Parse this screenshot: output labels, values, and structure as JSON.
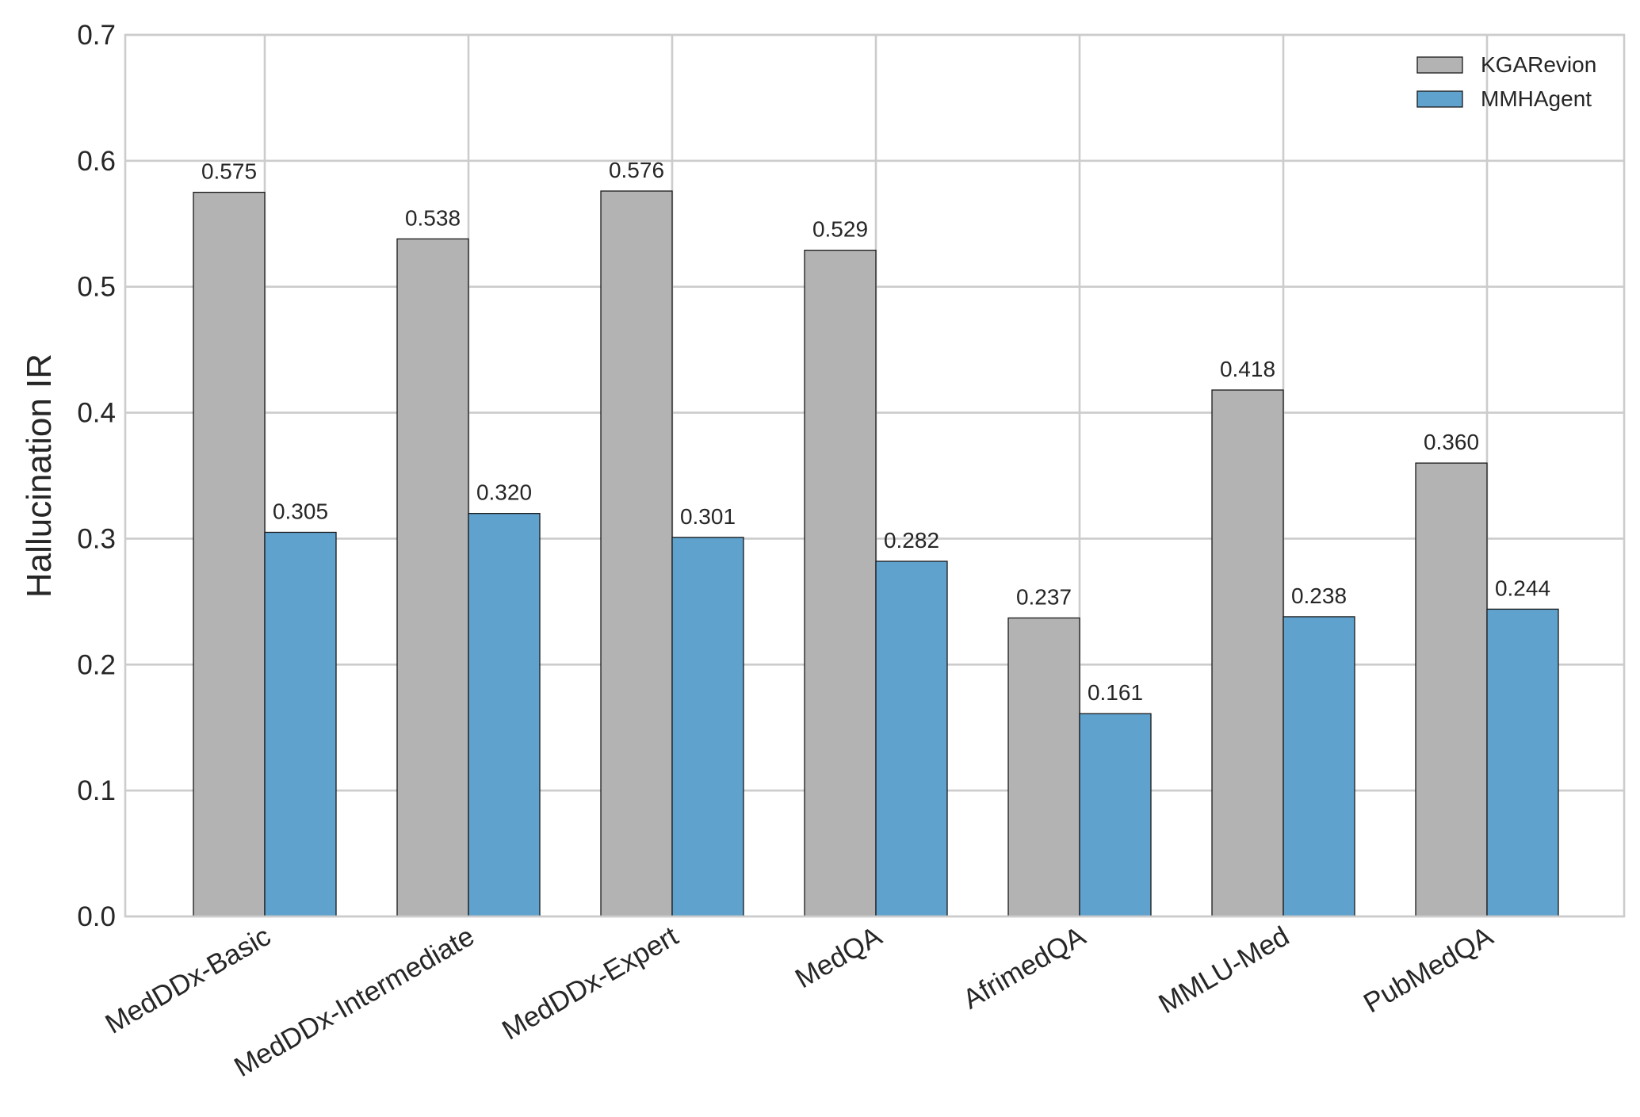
{
  "chart_data": {
    "type": "bar",
    "title": "",
    "xlabel": "",
    "ylabel": "Hallucination IR",
    "categories": [
      "MedDDx-Basic",
      "MedDDx-Intermediate",
      "MedDDx-Expert",
      "MedQA",
      "AfrimedQA",
      "MMLU-Med",
      "PubMedQA"
    ],
    "series": [
      {
        "name": "KGARevion",
        "color": "#b3b3b3",
        "values": [
          0.575,
          0.538,
          0.576,
          0.529,
          0.237,
          0.418,
          0.36
        ],
        "labels": [
          "0.575",
          "0.538",
          "0.576",
          "0.529",
          "0.237",
          "0.418",
          "0.360"
        ]
      },
      {
        "name": "MMHAgent",
        "color": "#5fa2cd",
        "values": [
          0.305,
          0.32,
          0.301,
          0.282,
          0.161,
          0.238,
          0.244
        ],
        "labels": [
          "0.305",
          "0.320",
          "0.301",
          "0.282",
          "0.161",
          "0.238",
          "0.244"
        ]
      }
    ],
    "ylim": [
      0,
      0.7
    ],
    "yticks": [
      "0.0",
      "0.1",
      "0.2",
      "0.3",
      "0.4",
      "0.5",
      "0.6",
      "0.7"
    ],
    "grid": true,
    "legend_position": "top-right"
  }
}
